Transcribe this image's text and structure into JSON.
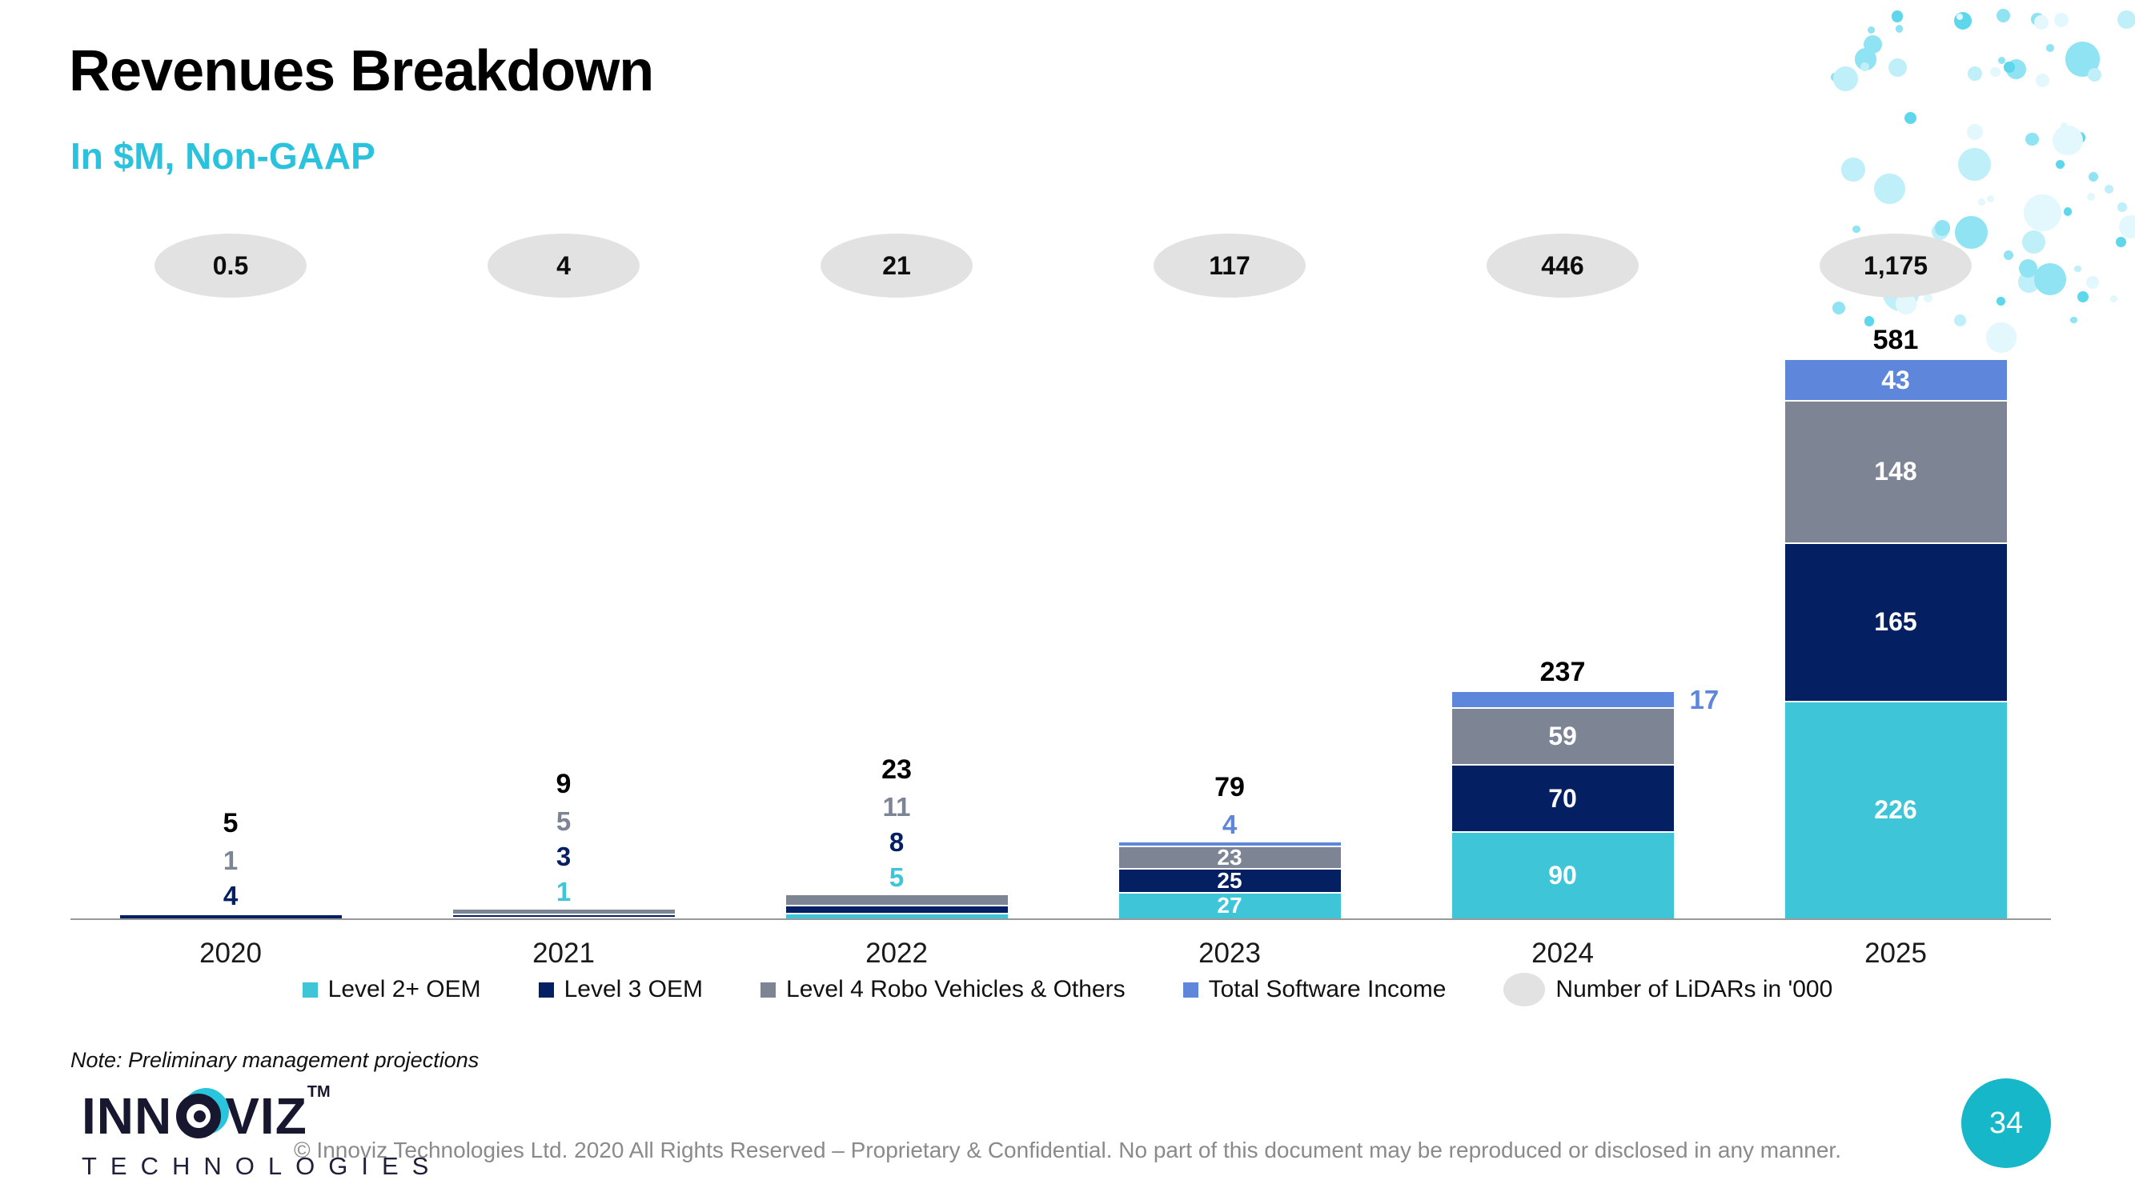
{
  "header": {
    "title": "Revenues Breakdown",
    "subtitle": "In $M, Non-GAAP"
  },
  "chart_data": {
    "type": "bar",
    "stacked": true,
    "title": "Revenues Breakdown",
    "unit": "$M, Non-GAAP",
    "categories": [
      "2020",
      "2021",
      "2022",
      "2023",
      "2024",
      "2025"
    ],
    "series": [
      {
        "name": "Level 2+ OEM",
        "color": "#3EC6D8",
        "values": [
          0,
          1,
          5,
          27,
          90,
          226
        ]
      },
      {
        "name": "Level 3 OEM",
        "color": "#052062",
        "values": [
          4,
          3,
          8,
          25,
          70,
          165
        ]
      },
      {
        "name": "Level 4 Robo Vehicles & Others",
        "color": "#7D8595",
        "values": [
          1,
          5,
          11,
          23,
          59,
          148
        ]
      },
      {
        "name": "Total Software Income",
        "color": "#5E87DB",
        "values": [
          0,
          0,
          0,
          4,
          17,
          43
        ]
      }
    ],
    "totals": [
      5,
      9,
      23,
      79,
      237,
      581
    ],
    "lidar_counts": [
      "0.5",
      "4",
      "21",
      "117",
      "446",
      "1,175"
    ],
    "lidar_legend_label": "Number of LiDARs in '000",
    "legend_position": "bottom",
    "grid": false,
    "ylim": [
      0,
      620
    ]
  },
  "note": "Note: Preliminary management projections",
  "logo": {
    "brand_left": "INN",
    "brand_right": "VIZ",
    "tm": "TM",
    "sub": "TECHNOLOGIES"
  },
  "footer": {
    "copyright": "© Innoviz Technologies Ltd. 2020 All Rights Reserved – Proprietary & Confidential. No part of this document may be reproduced or disclosed in any manner.",
    "page": "34"
  },
  "colors": {
    "subtitle": "#2BC2DE",
    "level2": "#3EC6D8",
    "level3": "#052062",
    "level4": "#7D8595",
    "software": "#5E87DB",
    "lidar_ellipse": "#E2E2E2",
    "axis": "#999999",
    "page_circle": "#15B7C9",
    "logo_accent": "#29C5DC",
    "dots_palette": [
      "#5ED7EC",
      "#8FE3F3",
      "#BFEFF8",
      "#E3F8FC"
    ]
  }
}
